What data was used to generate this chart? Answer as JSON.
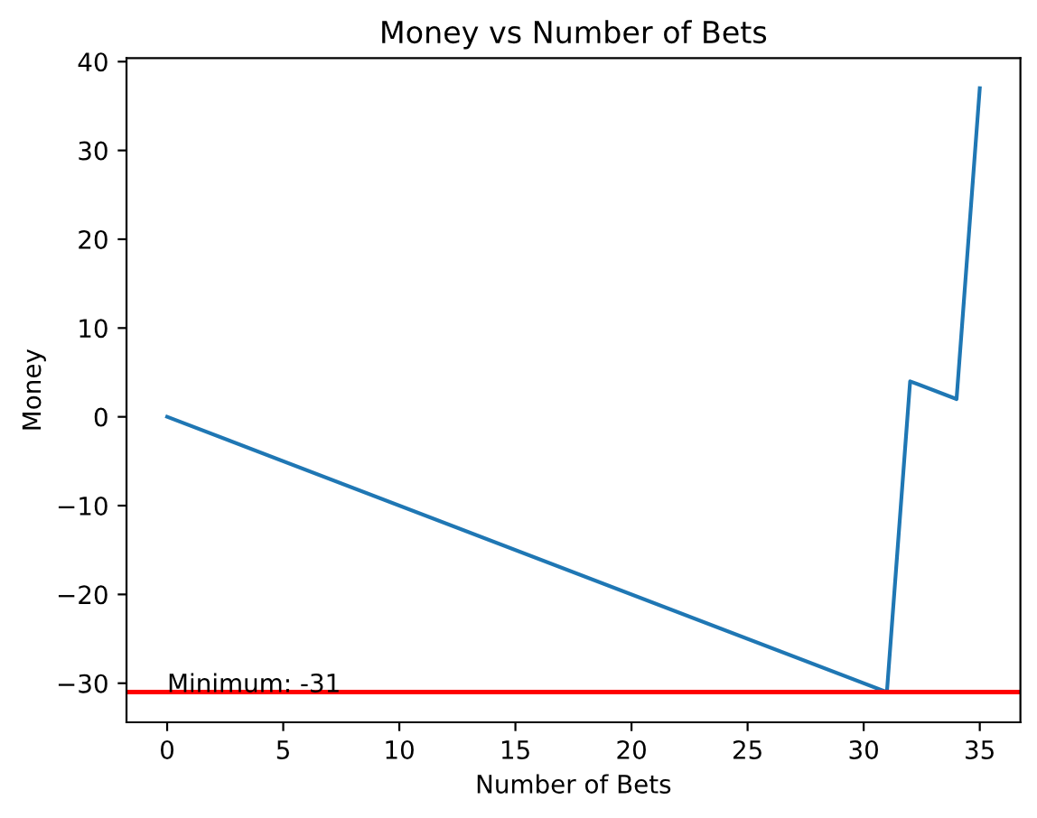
{
  "chart_data": {
    "type": "line",
    "title": "Money vs Number of Bets",
    "xlabel": "Number of Bets",
    "ylabel": "Money",
    "x": [
      0,
      31,
      32,
      34,
      35
    ],
    "series": [
      {
        "color": "#1f77b4",
        "values": [
          0,
          -31,
          4,
          2,
          37
        ]
      }
    ],
    "xlim": [
      -1.75,
      36.75
    ],
    "xticks": [
      0,
      5,
      10,
      15,
      20,
      25,
      30,
      35
    ],
    "ylim": [
      -34.4,
      40.4
    ],
    "yticks": [
      {
        "value": -30,
        "label": "−30"
      },
      {
        "value": -20,
        "label": "−20"
      },
      {
        "value": -10,
        "label": "−10"
      },
      0,
      10,
      20,
      30,
      40
    ],
    "ref_lines": [
      {
        "axis": "y",
        "value": -31,
        "color": "#ff0000",
        "line_style": "solid"
      }
    ],
    "annotations": [
      {
        "text": "Minimum: -31",
        "x": 0,
        "y": -31
      }
    ],
    "grid": false,
    "legend": false,
    "marker": "none",
    "line_style": "solid"
  }
}
